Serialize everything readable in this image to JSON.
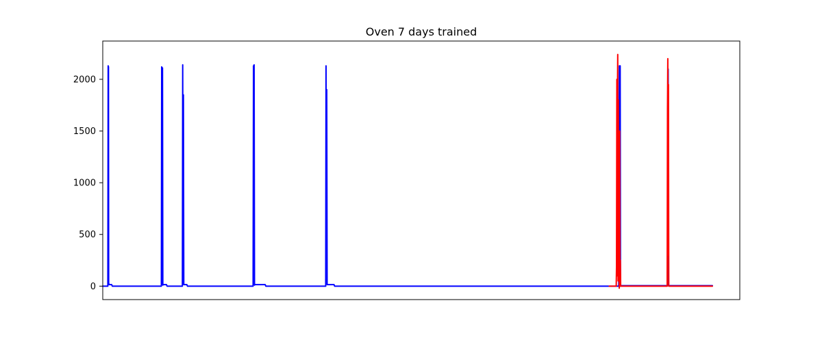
{
  "chart_data": {
    "type": "line",
    "title": "Oven 7 days trained",
    "xlabel": "",
    "ylabel": "",
    "ylim": [
      -130,
      2370
    ],
    "xlim": [
      0,
      1000
    ],
    "grid": false,
    "yticks": [
      0,
      500,
      1000,
      1500,
      2000
    ],
    "x_tick_labels_visible": false,
    "series": [
      {
        "color": "#0000ff",
        "points": [
          [
            0,
            0
          ],
          [
            8,
            0
          ],
          [
            8.5,
            2130
          ],
          [
            9,
            2120
          ],
          [
            9.3,
            30
          ],
          [
            10,
            15
          ],
          [
            14,
            15
          ],
          [
            15,
            0
          ],
          [
            92,
            0
          ],
          [
            92.5,
            2120
          ],
          [
            93.2,
            20
          ],
          [
            93.8,
            2110
          ],
          [
            94.3,
            10
          ],
          [
            95,
            15
          ],
          [
            100,
            15
          ],
          [
            101,
            0
          ],
          [
            125,
            0
          ],
          [
            125.5,
            2140
          ],
          [
            126.2,
            20
          ],
          [
            126.6,
            1850
          ],
          [
            127.2,
            15
          ],
          [
            132,
            15
          ],
          [
            133,
            0
          ],
          [
            236,
            0
          ],
          [
            236.6,
            2130
          ],
          [
            237.1,
            600
          ],
          [
            237.6,
            2140
          ],
          [
            238.2,
            10
          ],
          [
            239,
            15
          ],
          [
            255,
            15
          ],
          [
            256,
            0
          ],
          [
            350,
            0
          ],
          [
            350.5,
            2130
          ],
          [
            351.1,
            100
          ],
          [
            351.6,
            1900
          ],
          [
            352.2,
            15
          ],
          [
            363,
            15
          ],
          [
            364,
            0
          ],
          [
            810,
            0
          ],
          [
            811,
            2130
          ],
          [
            811.6,
            10
          ],
          [
            812.2,
            2130
          ],
          [
            812.7,
            0
          ],
          [
            813.5,
            5
          ],
          [
            887,
            5
          ],
          [
            887.5,
            2100
          ],
          [
            888.2,
            5
          ],
          [
            897,
            5
          ],
          [
            957,
            5
          ]
        ]
      },
      {
        "color": "#ff0000",
        "points": [
          [
            795,
            0
          ],
          [
            806,
            0
          ],
          [
            806.5,
            200
          ],
          [
            807,
            2000
          ],
          [
            807.5,
            100
          ],
          [
            808,
            1900
          ],
          [
            808.4,
            2240
          ],
          [
            808.9,
            50
          ],
          [
            809.4,
            1800
          ],
          [
            809.8,
            150
          ],
          [
            810.3,
            1200
          ],
          [
            810.8,
            -20
          ],
          [
            811.4,
            1500
          ],
          [
            811.9,
            0
          ],
          [
            812.5,
            250
          ],
          [
            813,
            0
          ],
          [
            886,
            0
          ],
          [
            886.5,
            1700
          ],
          [
            887,
            2200
          ],
          [
            887.5,
            300
          ],
          [
            888,
            1950
          ],
          [
            888.5,
            0
          ],
          [
            957,
            0
          ]
        ]
      }
    ]
  }
}
